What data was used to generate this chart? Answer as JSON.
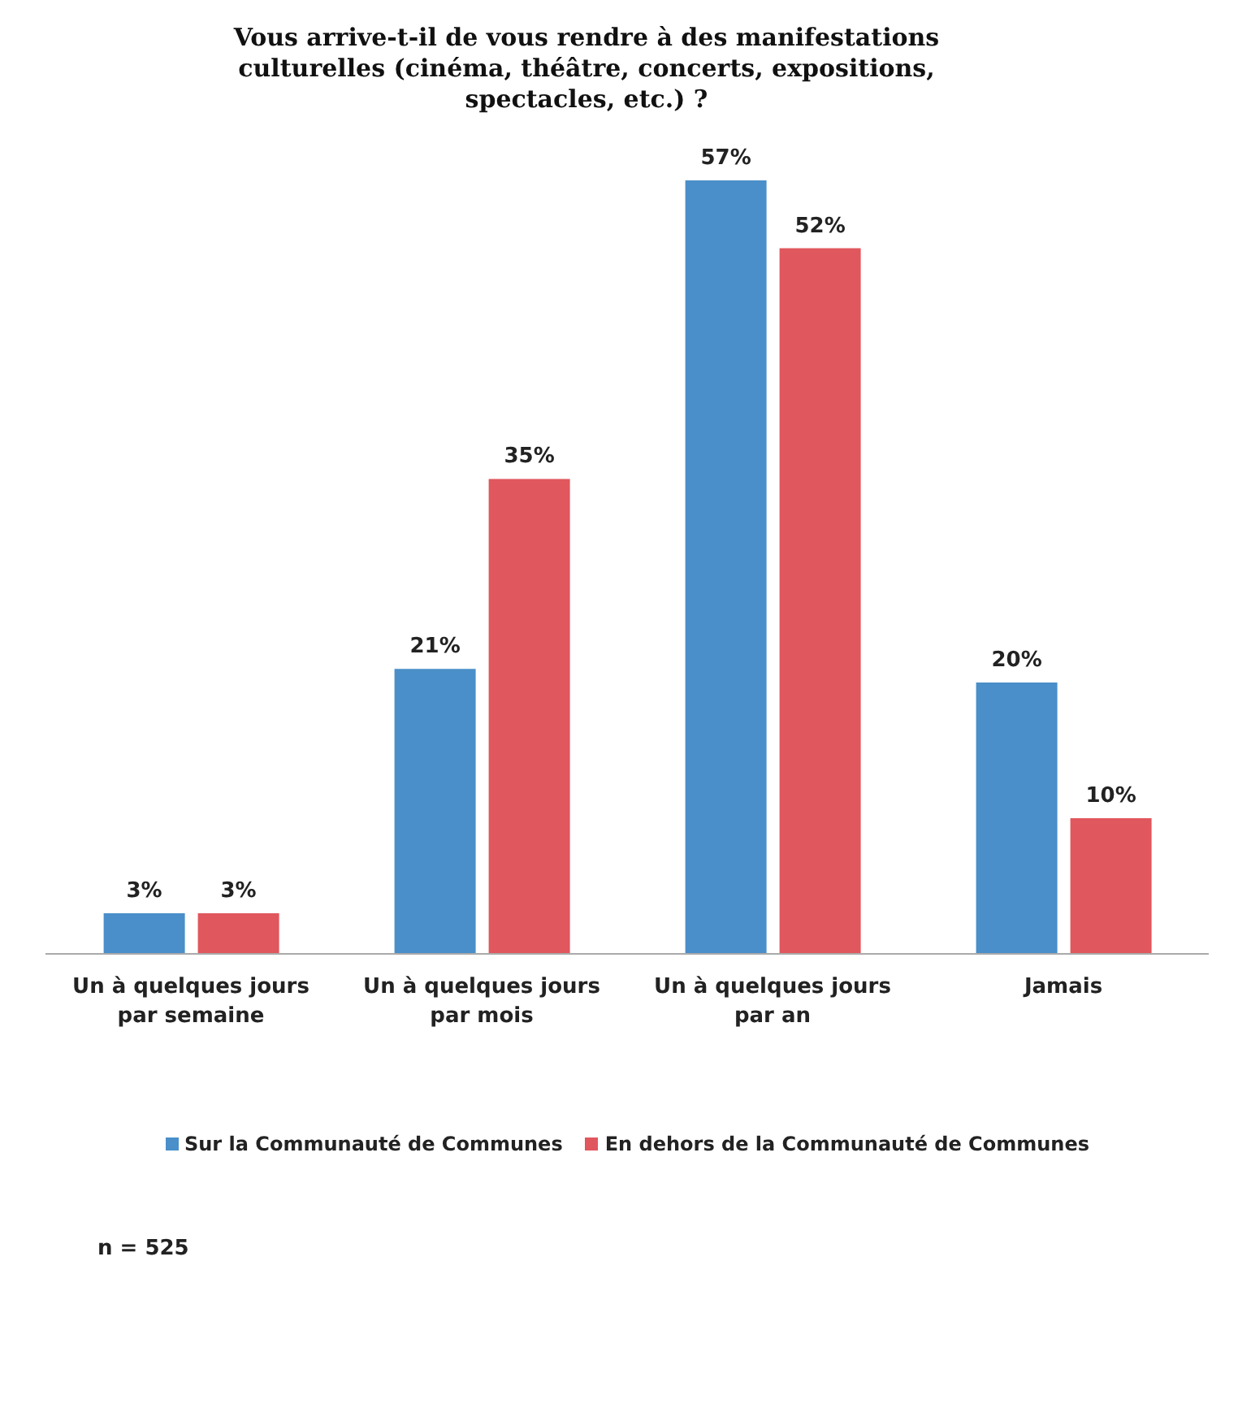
{
  "chart_data": {
    "type": "bar",
    "title": "Vous arrive-t-il de vous rendre à des manifestations culturelles (cinéma, théâtre, concerts, expositions, spectacles, etc.) ?",
    "categories": [
      "Un à quelques jours par semaine",
      "Un à quelques jours par mois",
      "Un à quelques jours par an",
      "Jamais"
    ],
    "series": [
      {
        "name": "Sur la Communauté de Communes",
        "color": "#4a8fc9",
        "values": [
          3,
          21,
          57,
          20
        ],
        "value_labels": [
          "3%",
          "21%",
          "57%",
          "20%"
        ]
      },
      {
        "name": "En dehors de la Communauté de Communes",
        "color": "#e0575d",
        "values": [
          3,
          35,
          52,
          10
        ],
        "value_labels": [
          "3%",
          "35%",
          "52%",
          "10%"
        ]
      }
    ],
    "legend": "bottom",
    "grid": false,
    "annotations": [
      "n = 525"
    ]
  }
}
